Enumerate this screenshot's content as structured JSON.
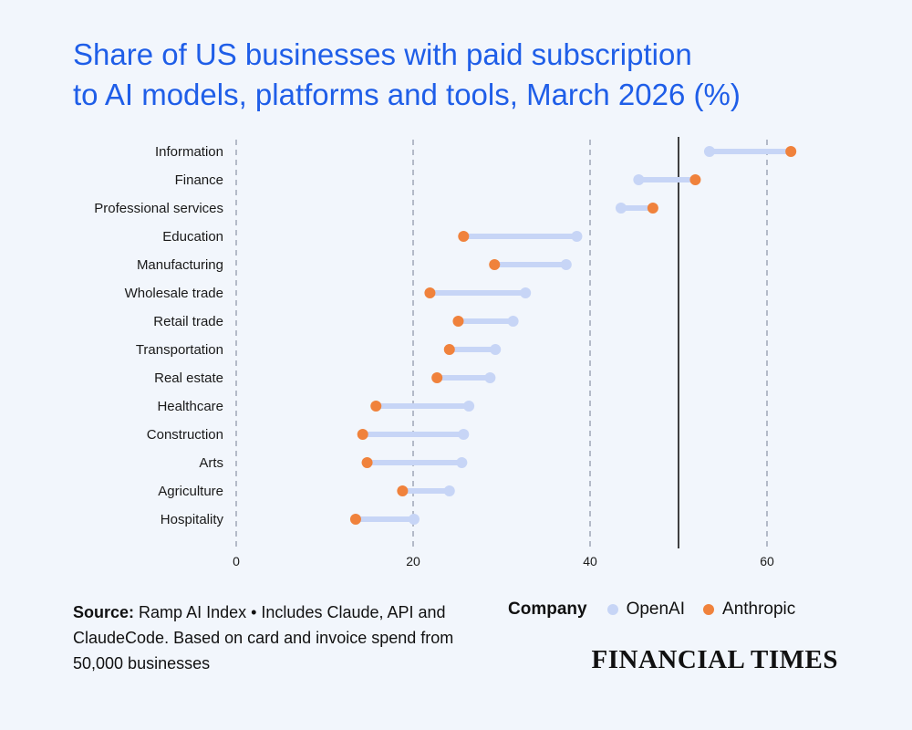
{
  "title_lines": [
    "Share of US businesses with paid subscription",
    "to AI models, platforms and tools, March 2026 (%)"
  ],
  "colors": {
    "title": "#1f5ee8",
    "openai": "#c7d5f6",
    "anthropic": "#f0823c",
    "connector": "#c7d5f6",
    "gridline": "#8a93a6",
    "reference_line": "#111111",
    "background": "#f2f6fc"
  },
  "chart_data": {
    "type": "dumbbell",
    "title": "Share of US businesses with paid subscription to AI models, platforms and tools, March 2026 (%)",
    "xlabel": "",
    "ylabel": "",
    "xlim": [
      0,
      65
    ],
    "xticks": [
      0,
      20,
      40,
      60
    ],
    "reference_line": 50,
    "categories": [
      "Information",
      "Finance",
      "Professional services",
      "Education",
      "Manufacturing",
      "Wholesale trade",
      "Retail trade",
      "Transportation",
      "Real estate",
      "Healthcare",
      "Construction",
      "Arts",
      "Agriculture",
      "Hospitality"
    ],
    "series": [
      {
        "name": "OpenAI",
        "color": "#c7d5f6",
        "values": [
          53.5,
          45.5,
          43.5,
          38.5,
          37.3,
          32.7,
          31.3,
          29.3,
          28.7,
          26.3,
          25.7,
          25.5,
          24.1,
          20.1
        ]
      },
      {
        "name": "Anthropic",
        "color": "#f0823c",
        "values": [
          62.7,
          51.9,
          47.1,
          25.7,
          29.2,
          21.9,
          25.1,
          24.1,
          22.7,
          15.8,
          14.3,
          14.8,
          18.8,
          13.5
        ]
      }
    ]
  },
  "legend": {
    "title": "Company",
    "items": [
      {
        "label": "OpenAI",
        "color": "#c7d5f6"
      },
      {
        "label": "Anthropic",
        "color": "#f0823c"
      }
    ]
  },
  "source": {
    "label": "Source:",
    "text": "Ramp AI Index • Includes Claude, API and ClaudeCode. Based on card and invoice spend from 50,000 businesses"
  },
  "brand": "FINANCIAL TIMES"
}
